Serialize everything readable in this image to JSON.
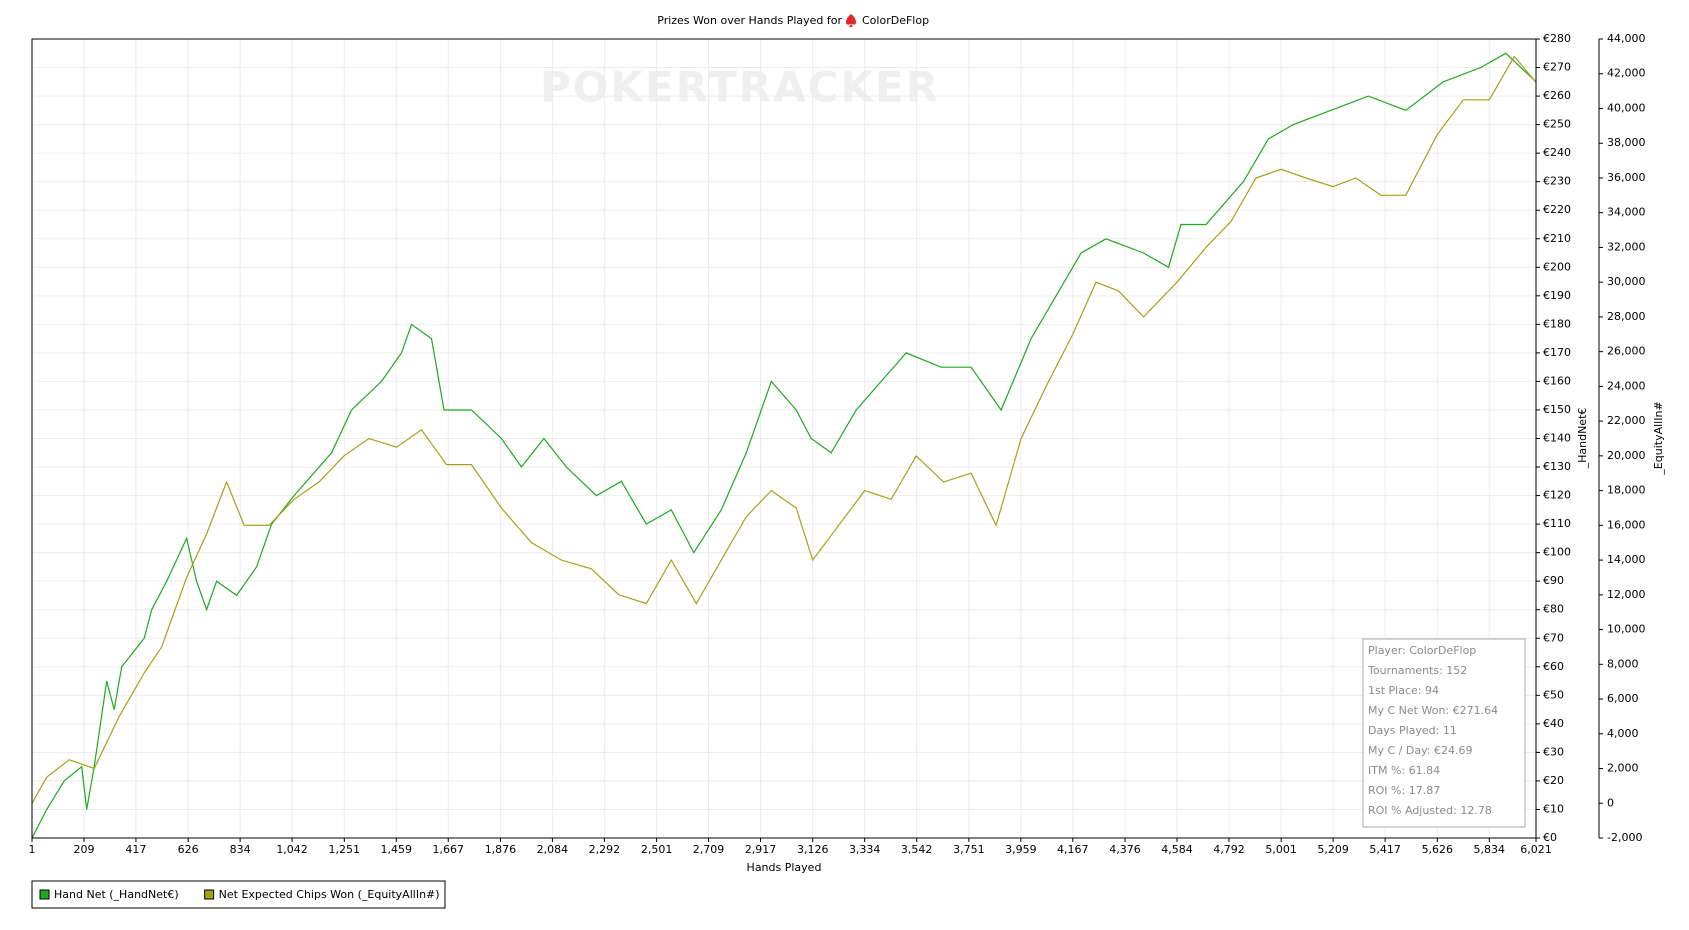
{
  "chart_data": {
    "type": "line",
    "title": "Prizes Won over Hands Played for",
    "player": "ColorDeFlop",
    "watermark": "POKERTRACKER",
    "xlabel": "Hands Played",
    "ylabel": "_HandNet€",
    "y2label": "_EquityAllIn#",
    "xlim": [
      1,
      6021
    ],
    "xticks": [
      1,
      209,
      417,
      626,
      834,
      {
        "value": 1042,
        "label": "1,042"
      },
      {
        "value": 1251,
        "label": "1,251"
      },
      {
        "value": 1459,
        "label": "1,459"
      },
      {
        "value": 1667,
        "label": "1,667"
      },
      {
        "value": 1876,
        "label": "1,876"
      },
      {
        "value": 2084,
        "label": "2,084"
      },
      {
        "value": 2292,
        "label": "2,292"
      },
      {
        "value": 2501,
        "label": "2,501"
      },
      {
        "value": 2709,
        "label": "2,709"
      },
      {
        "value": 2917,
        "label": "2,917"
      },
      {
        "value": 3126,
        "label": "3,126"
      },
      {
        "value": 3334,
        "label": "3,334"
      },
      {
        "value": 3542,
        "label": "3,542"
      },
      {
        "value": 3751,
        "label": "3,751"
      },
      {
        "value": 3959,
        "label": "3,959"
      },
      {
        "value": 4167,
        "label": "4,167"
      },
      {
        "value": 4376,
        "label": "4,376"
      },
      {
        "value": 4584,
        "label": "4,584"
      },
      {
        "value": 4792,
        "label": "4,792"
      },
      {
        "value": 5001,
        "label": "5,001"
      },
      {
        "value": 5209,
        "label": "5,209"
      },
      {
        "value": 5417,
        "label": "5,417"
      },
      {
        "value": 5626,
        "label": "5,626"
      },
      {
        "value": 5834,
        "label": "5,834"
      },
      {
        "value": 6021,
        "label": "6,021"
      }
    ],
    "ylim": [
      0,
      280
    ],
    "yticks": [
      {
        "value": 0,
        "label": "€0"
      },
      {
        "value": 10,
        "label": "€10"
      },
      {
        "value": 20,
        "label": "€20"
      },
      {
        "value": 30,
        "label": "€30"
      },
      {
        "value": 40,
        "label": "€40"
      },
      {
        "value": 50,
        "label": "€50"
      },
      {
        "value": 60,
        "label": "€60"
      },
      {
        "value": 70,
        "label": "€70"
      },
      {
        "value": 80,
        "label": "€80"
      },
      {
        "value": 90,
        "label": "€90"
      },
      {
        "value": 100,
        "label": "€100"
      },
      {
        "value": 110,
        "label": "€110"
      },
      {
        "value": 120,
        "label": "€120"
      },
      {
        "value": 130,
        "label": "€130"
      },
      {
        "value": 140,
        "label": "€140"
      },
      {
        "value": 150,
        "label": "€150"
      },
      {
        "value": 160,
        "label": "€160"
      },
      {
        "value": 170,
        "label": "€170"
      },
      {
        "value": 180,
        "label": "€180"
      },
      {
        "value": 190,
        "label": "€190"
      },
      {
        "value": 200,
        "label": "€200"
      },
      {
        "value": 210,
        "label": "€210"
      },
      {
        "value": 220,
        "label": "€220"
      },
      {
        "value": 230,
        "label": "€230"
      },
      {
        "value": 240,
        "label": "€240"
      },
      {
        "value": 250,
        "label": "€250"
      },
      {
        "value": 260,
        "label": "€260"
      },
      {
        "value": 270,
        "label": "€270"
      },
      {
        "value": 280,
        "label": "€280"
      }
    ],
    "y2lim": [
      -2000,
      44000
    ],
    "y2ticks": [
      {
        "value": -2000,
        "label": "-2,000"
      },
      0,
      {
        "value": 2000,
        "label": "2,000"
      },
      {
        "value": 4000,
        "label": "4,000"
      },
      {
        "value": 6000,
        "label": "6,000"
      },
      {
        "value": 8000,
        "label": "8,000"
      },
      {
        "value": 10000,
        "label": "10,000"
      },
      {
        "value": 12000,
        "label": "12,000"
      },
      {
        "value": 14000,
        "label": "14,000"
      },
      {
        "value": 16000,
        "label": "16,000"
      },
      {
        "value": 18000,
        "label": "18,000"
      },
      {
        "value": 20000,
        "label": "20,000"
      },
      {
        "value": 22000,
        "label": "22,000"
      },
      {
        "value": 24000,
        "label": "24,000"
      },
      {
        "value": 26000,
        "label": "26,000"
      },
      {
        "value": 28000,
        "label": "28,000"
      },
      {
        "value": 30000,
        "label": "30,000"
      },
      {
        "value": 32000,
        "label": "32,000"
      },
      {
        "value": 34000,
        "label": "34,000"
      },
      {
        "value": 36000,
        "label": "36,000"
      },
      {
        "value": 38000,
        "label": "38,000"
      },
      {
        "value": 40000,
        "label": "40,000"
      },
      {
        "value": 42000,
        "label": "42,000"
      },
      {
        "value": 44000,
        "label": "44,000"
      }
    ],
    "grid": true,
    "series": [
      {
        "name": "Hand Net (_HandNet€)",
        "color": "#1fa81f",
        "x": [
          1,
          60,
          130,
          200,
          220,
          250,
          300,
          330,
          360,
          450,
          480,
          540,
          620,
          660,
          700,
          740,
          820,
          900,
          960,
          1050,
          1200,
          1280,
          1400,
          1480,
          1520,
          1600,
          1650,
          1760,
          1880,
          1960,
          2050,
          2140,
          2260,
          2360,
          2460,
          2560,
          2650,
          2760,
          2860,
          2960,
          3060,
          3120,
          3200,
          3300,
          3400,
          3500,
          3640,
          3760,
          3880,
          4000,
          4100,
          4200,
          4300,
          4450,
          4550,
          4600,
          4700,
          4850,
          4950,
          5050,
          5200,
          5350,
          5500,
          5650,
          5800,
          5900,
          6021
        ],
        "values": [
          0,
          10,
          20,
          25,
          10,
          25,
          55,
          45,
          60,
          70,
          80,
          90,
          105,
          90,
          80,
          90,
          85,
          95,
          110,
          120,
          135,
          150,
          160,
          170,
          180,
          175,
          150,
          150,
          140,
          130,
          140,
          130,
          120,
          125,
          110,
          115,
          100,
          115,
          135,
          160,
          150,
          140,
          135,
          150,
          160,
          170,
          165,
          165,
          150,
          175,
          190,
          205,
          210,
          205,
          200,
          215,
          215,
          230,
          245,
          250,
          255,
          260,
          255,
          265,
          270,
          275,
          265
        ]
      },
      {
        "name": "Net Expected Chips Won (_EquityAllIn#)",
        "color": "#a6a019",
        "axis": "y2",
        "x": [
          1,
          60,
          150,
          250,
          350,
          450,
          520,
          620,
          700,
          780,
          850,
          950,
          1050,
          1150,
          1250,
          1350,
          1460,
          1560,
          1660,
          1760,
          1880,
          2000,
          2120,
          2240,
          2350,
          2460,
          2560,
          2660,
          2760,
          2860,
          2960,
          3060,
          3126,
          3230,
          3334,
          3440,
          3540,
          3650,
          3760,
          3860,
          3960,
          4060,
          4167,
          4260,
          4350,
          4450,
          4584,
          4700,
          4800,
          4900,
          5001,
          5100,
          5209,
          5300,
          5400,
          5500,
          5626,
          5730,
          5834,
          5934,
          6021
        ],
        "values": [
          0,
          1500,
          2500,
          2000,
          5000,
          7500,
          9000,
          13000,
          15500,
          18500,
          16000,
          16000,
          17500,
          18500,
          20000,
          21000,
          20500,
          21500,
          19500,
          19500,
          17000,
          15000,
          14000,
          13500,
          12000,
          11500,
          14000,
          11500,
          14000,
          16500,
          18000,
          17000,
          14000,
          16000,
          18000,
          17500,
          20000,
          18500,
          19000,
          16000,
          21000,
          24000,
          27000,
          30000,
          29500,
          28000,
          30000,
          32000,
          33500,
          36000,
          36500,
          36000,
          35500,
          36000,
          35000,
          35000,
          38500,
          40500,
          40500,
          43000,
          41500
        ]
      }
    ],
    "stats": [
      "Player: ColorDeFlop",
      "Tournaments: 152",
      "1st Place: 94",
      "My C Net Won: €271.64",
      "Days Played: 11",
      "My C / Day: €24.69",
      "ITM %: 61.84",
      "ROI %: 17.87",
      "ROI % Adjusted: 12.78"
    ]
  }
}
